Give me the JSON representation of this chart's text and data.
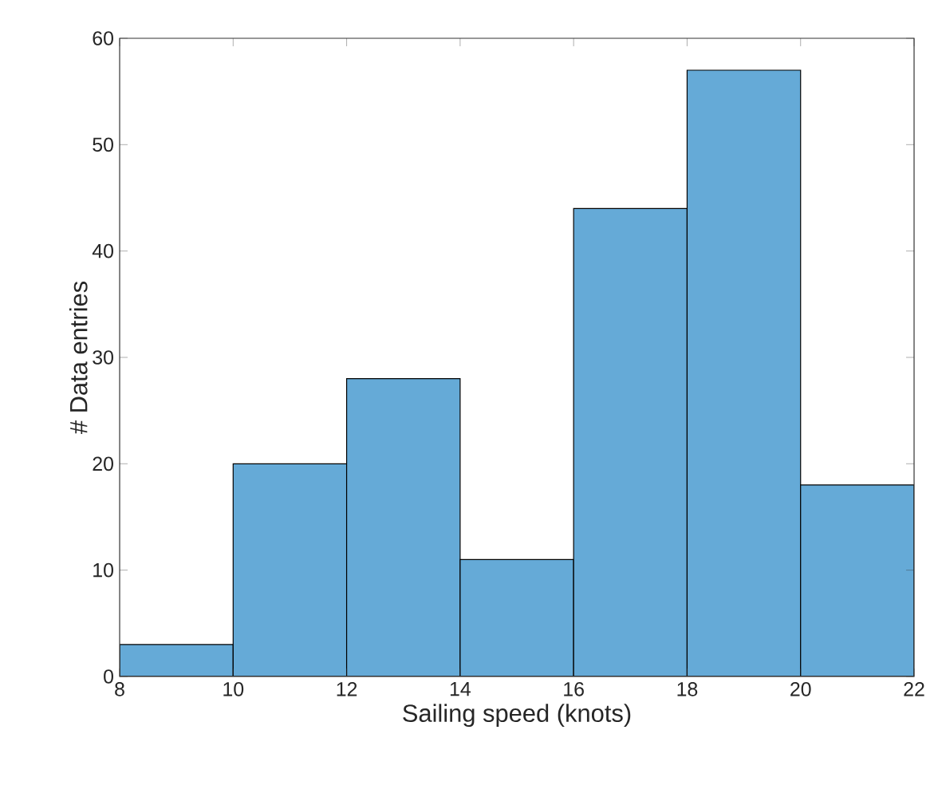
{
  "chart_data": {
    "type": "histogram",
    "xlabel": "Sailing speed (knots)",
    "ylabel": "# Data entries",
    "bins": [
      8,
      10,
      12,
      14,
      16,
      18,
      20,
      22
    ],
    "values": [
      3,
      20,
      28,
      11,
      44,
      57,
      18
    ],
    "color": "#65aad7",
    "xlim": [
      8,
      22
    ],
    "xticks": [
      8,
      10,
      12,
      14,
      16,
      18,
      20,
      22
    ],
    "ylim": [
      0,
      60
    ],
    "yticks": [
      0,
      10,
      20,
      30,
      40,
      50,
      60
    ]
  }
}
